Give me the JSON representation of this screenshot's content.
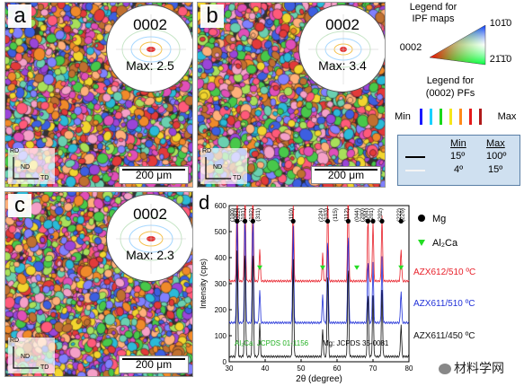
{
  "panels": [
    {
      "label": "a",
      "pf_title": "0002",
      "pf_max": "Max: 2.5",
      "scale": "200 μm"
    },
    {
      "label": "b",
      "pf_title": "0002",
      "pf_max": "Max: 3.4",
      "scale": "200 μm"
    },
    {
      "label": "c",
      "pf_title": "0002",
      "pf_max": "Max: 2.3",
      "scale": "200 μm"
    }
  ],
  "axes": {
    "rd": "RD",
    "nd": "ND",
    "td": "TD"
  },
  "legend": {
    "ipf_title_1": "Legend for",
    "ipf_title_2": "IPF maps",
    "ipf_0001": "0002",
    "ipf_1010": "101̄0",
    "ipf_2110": "21̄1̄0",
    "pf_title_1": "Legend for",
    "pf_title_2": "(0002) PFs",
    "min": "Min",
    "max": "Max",
    "contour_colors": [
      "#1a1aff",
      "#1ad0ff",
      "#1ad81a",
      "#f5e61a",
      "#ff8a1a",
      "#e51a1a",
      "#b01a1a"
    ]
  },
  "table": {
    "min_header": "Min",
    "max_header": "Max",
    "row1_min": "15º",
    "row1_max": "100º",
    "row2_min": "4º",
    "row2_max": "15º"
  },
  "xrd": {
    "panel_label": "d",
    "xlabel": "2θ (degree)",
    "ylabel": "Intensity (cps)",
    "yticks": [
      "0",
      "100",
      "200",
      "300",
      "400",
      "500",
      "600"
    ],
    "xticks": [
      "30",
      "40",
      "50",
      "60",
      "70",
      "80"
    ],
    "mg_label": "Mg",
    "al2ca_label": "Al₂Ca",
    "jcpds_al2ca": "Al₂Ca: JCPDS 01-1156",
    "jcpds_mg": "Mg: JCPDS 35-0081",
    "peak_labels": [
      "(100)",
      "(002)",
      "(101)",
      "(102)",
      "(110)",
      "(103)",
      "(112)",
      "(004)",
      "(202)",
      "(222)",
      "(311)",
      "(224)",
      "(115)",
      "(044)",
      "(200)",
      "(201)",
      "(226)",
      "(022)"
    ],
    "series": [
      {
        "name": "AZX612/510 ºC",
        "color": "#e8202a"
      },
      {
        "name": "AZX611/510 ºC",
        "color": "#2030d8"
      },
      {
        "name": "AZX611/450 ºC",
        "color": "#111111"
      }
    ]
  },
  "watermark": "材料学网"
}
